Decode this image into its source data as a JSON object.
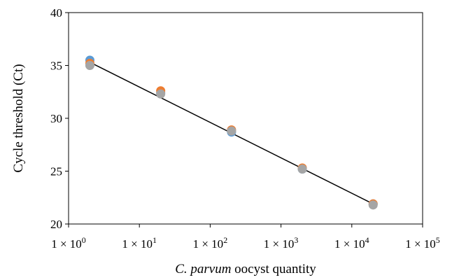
{
  "chart_data": {
    "type": "scatter",
    "xscale": "log",
    "xlim": [
      1,
      100000
    ],
    "ylim": [
      20,
      40
    ],
    "xticks": [
      1,
      10,
      100,
      1000,
      10000,
      100000
    ],
    "yticks": [
      20,
      25,
      30,
      35,
      40
    ],
    "xtick_labels": [
      {
        "base": "1 × 10",
        "exp": "0"
      },
      {
        "base": "1 × 10",
        "exp": "1"
      },
      {
        "base": "1 × 10",
        "exp": "2"
      },
      {
        "base": "1 × 10",
        "exp": "3"
      },
      {
        "base": "1 × 10",
        "exp": "4"
      },
      {
        "base": "1 × 10",
        "exp": "5"
      }
    ],
    "ytick_labels": [
      "20",
      "25",
      "30",
      "35",
      "40"
    ],
    "xlabel_italic": "C. parvum",
    "xlabel_rest": " oocyst quantity",
    "ylabel": "Cycle threshold (Ct)",
    "grid": false,
    "series": [
      {
        "color": "#5b9bd5",
        "x": [
          2,
          20,
          200,
          2000,
          20000
        ],
        "y": [
          35.5,
          32.4,
          28.7,
          25.2,
          21.9
        ]
      },
      {
        "color": "#ed7d31",
        "x": [
          2,
          20,
          200,
          2000,
          20000
        ],
        "y": [
          35.2,
          32.6,
          28.9,
          25.3,
          21.9
        ]
      },
      {
        "color": "#a5a5a5",
        "x": [
          2,
          20,
          200,
          2000,
          20000
        ],
        "y": [
          35.0,
          32.3,
          28.8,
          25.2,
          21.8
        ]
      }
    ],
    "trendline": {
      "color": "#000000",
      "x": [
        2,
        20000
      ],
      "y": [
        35.3,
        21.9
      ]
    }
  }
}
